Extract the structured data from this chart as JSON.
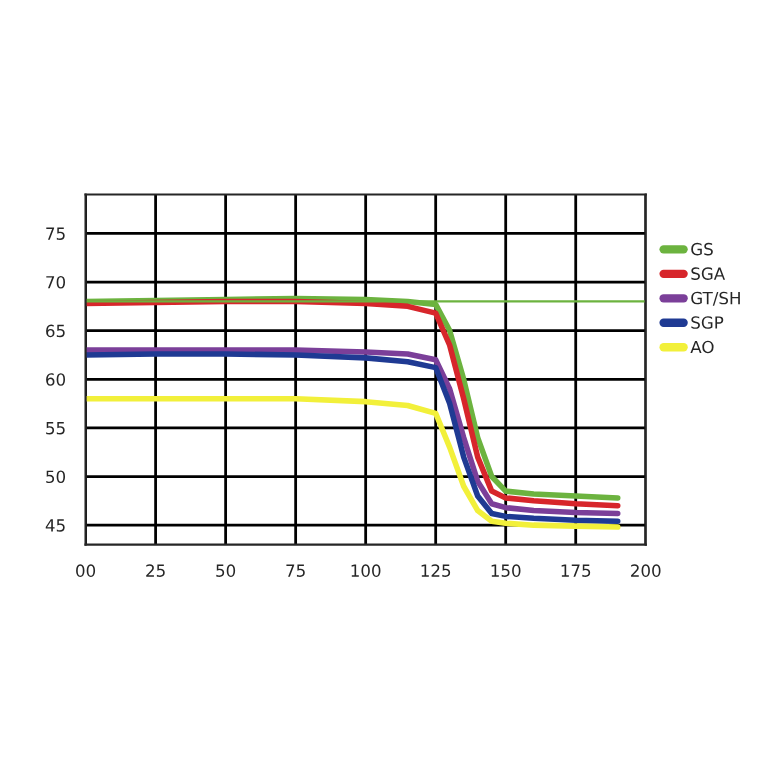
{
  "chart_data": {
    "type": "line",
    "x": [
      0,
      25,
      50,
      75,
      100,
      115,
      125,
      130,
      135,
      140,
      145,
      150,
      160,
      175,
      190
    ],
    "series": [
      {
        "name": "GS",
        "color": "#6cb33f",
        "values": [
          68,
          68.1,
          68.2,
          68.3,
          68.2,
          68,
          67.7,
          65,
          60,
          54,
          50,
          48.5,
          48.2,
          48,
          47.8
        ]
      },
      {
        "name": "SGA",
        "color": "#d7262b",
        "values": [
          67.8,
          67.9,
          68,
          68,
          67.8,
          67.5,
          66.8,
          63.5,
          58,
          52,
          48.5,
          47.8,
          47.5,
          47.2,
          47
        ]
      },
      {
        "name": "GT/SH",
        "color": "#7b3f99",
        "values": [
          63,
          63,
          63,
          63,
          62.8,
          62.6,
          62,
          59,
          54,
          49.5,
          47.2,
          46.8,
          46.5,
          46.3,
          46.2
        ]
      },
      {
        "name": "SGP",
        "color": "#1f3a93",
        "values": [
          62.5,
          62.6,
          62.6,
          62.5,
          62.2,
          61.8,
          61.2,
          57.5,
          52,
          48,
          46.2,
          45.9,
          45.7,
          45.5,
          45.4
        ]
      },
      {
        "name": "AO",
        "color": "#f2f03a",
        "values": [
          58,
          58,
          58,
          58,
          57.7,
          57.3,
          56.5,
          53,
          49,
          46.5,
          45.4,
          45.2,
          45,
          44.9,
          44.8
        ]
      }
    ],
    "xlim": [
      0,
      200
    ],
    "xticks": [
      {
        "value": 0,
        "label": "00"
      },
      25,
      50,
      75,
      100,
      125,
      150,
      175,
      200
    ],
    "ylim": [
      43,
      79
    ],
    "yticks": [
      45,
      50,
      55,
      60,
      65,
      70,
      75
    ],
    "ref_lines": [
      {
        "axis": "y",
        "value": 68,
        "color": "#6cb33f"
      }
    ],
    "grid": true,
    "legend": "right",
    "marker": "none",
    "line_style": "solid"
  }
}
